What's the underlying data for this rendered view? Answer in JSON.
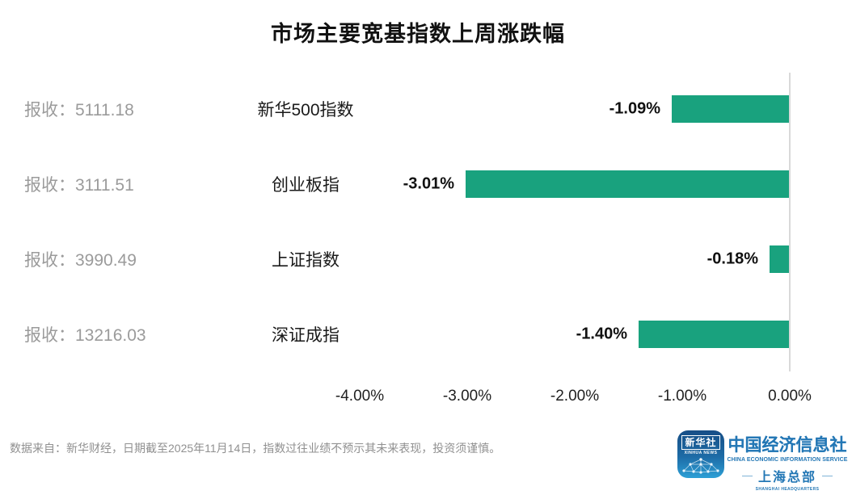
{
  "title": "市场主要宽基指数上周涨跌幅",
  "chart_data": {
    "type": "bar",
    "orientation": "horizontal",
    "title": "市场主要宽基指数上周涨跌幅",
    "categories": [
      "新华500指数",
      "创业板指",
      "上证指数",
      "深证成指"
    ],
    "values": [
      -1.09,
      -3.01,
      -0.18,
      -1.4
    ],
    "value_labels": [
      "-1.09%",
      "-3.01%",
      "-0.18%",
      "-1.40%"
    ],
    "close_prefix": "报收：",
    "close_values": [
      "5111.18",
      "3111.51",
      "3990.49",
      "13216.03"
    ],
    "x_ticks": [
      "-4.00%",
      "-3.00%",
      "-2.00%",
      "-1.00%",
      "0.00%"
    ],
    "x_tick_values": [
      -4,
      -3,
      -2,
      -1,
      0
    ],
    "xlim": [
      -4.4,
      0
    ],
    "grid": false,
    "legend": false,
    "bar_color": "#19A27E",
    "axis_line_color": "#D9D9D9",
    "label_color": "#111111",
    "muted_color": "#9B9B9B"
  },
  "footer": {
    "source_note": "数据来自：新华财经，日期截至2025年11月14日，指数过往业绩不预示其未来表现，投资须谨慎。"
  },
  "branding": {
    "accent_blue": "#2377B5",
    "icon_title": "新华社",
    "icon_subtitle": "XINHUA NEWS",
    "org_cn": "中国经济信息社",
    "org_en": "CHINA ECONOMIC INFORMATION SERVICE",
    "branch_cn": "上海总部",
    "branch_en": "SHANGHAI HEADQUARTERS"
  }
}
